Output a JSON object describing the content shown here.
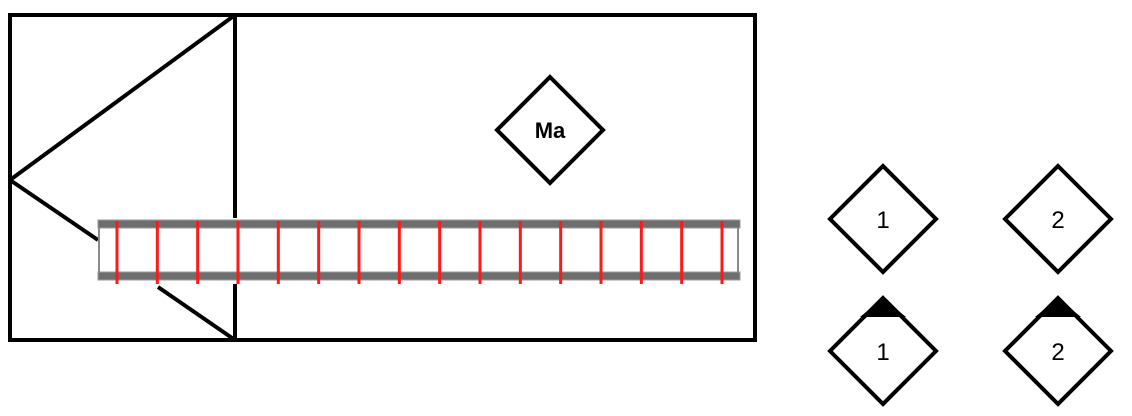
{
  "diagram": {
    "main_box_label": "Ma",
    "legend": [
      {
        "label": "1",
        "marked": false
      },
      {
        "label": "2",
        "marked": false
      },
      {
        "label": "1",
        "marked": true
      },
      {
        "label": "2",
        "marked": true
      }
    ],
    "ladder": {
      "rung_count": 16,
      "rail_color": "#6e6e6e",
      "rung_color": "#ff1a1a"
    },
    "colors": {
      "line": "#000000",
      "marker_fill": "#000000",
      "background": "#ffffff"
    }
  }
}
